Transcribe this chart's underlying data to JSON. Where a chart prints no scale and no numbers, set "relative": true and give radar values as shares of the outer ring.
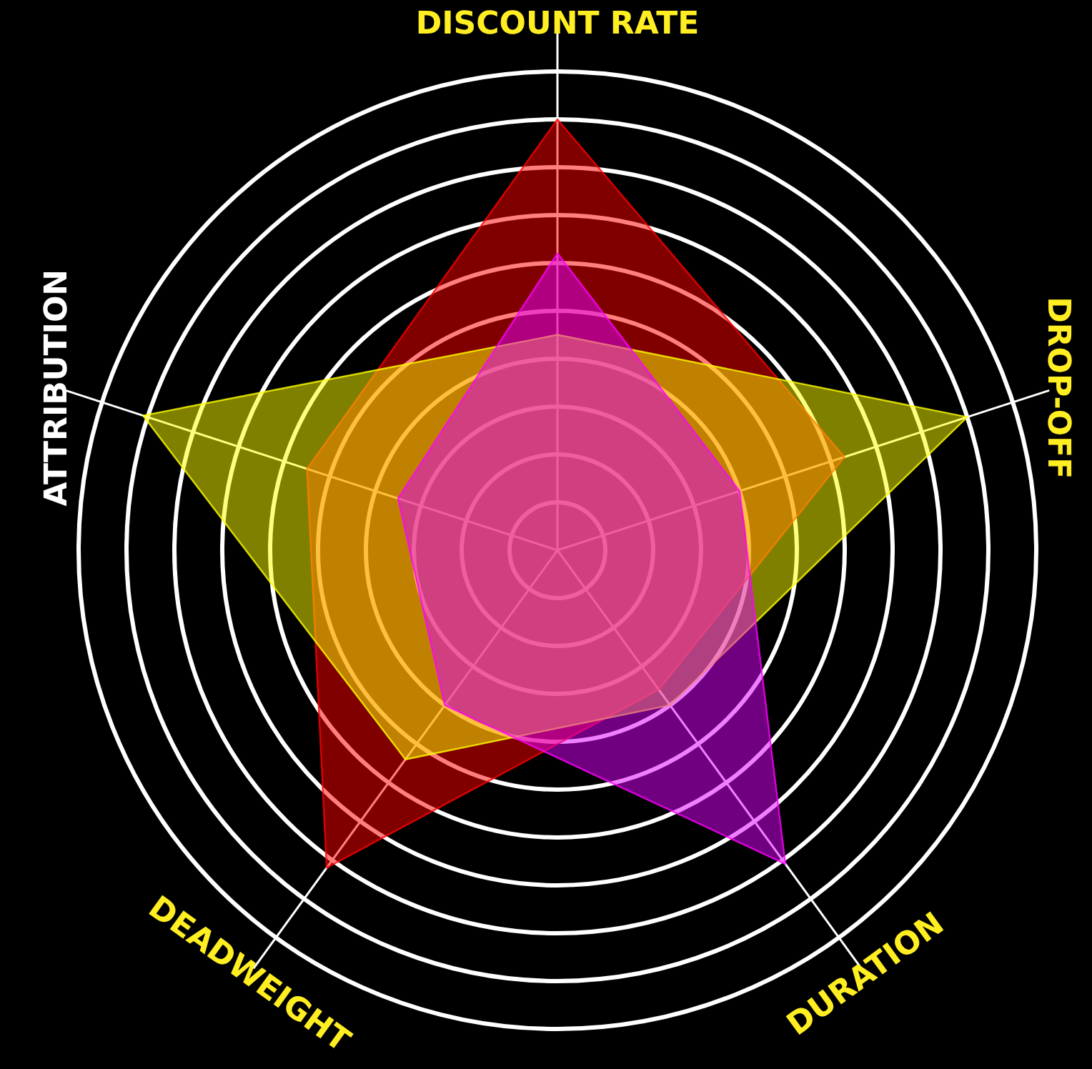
{
  "chart_data": {
    "type": "radar",
    "relative": true,
    "categories": [
      "DISCOUNT RATE",
      "DROP-OFF",
      "DURATION",
      "DEADWEIGHT",
      "ATTRIBUTION"
    ],
    "series": [
      {
        "color": "#ff0000",
        "values": [
          0.9,
          0.63,
          0.36,
          0.82,
          0.55
        ]
      },
      {
        "color": "#ffff00",
        "values": [
          0.45,
          0.9,
          0.4,
          0.54,
          0.91
        ]
      },
      {
        "color": "#e000ff",
        "values": [
          0.62,
          0.4,
          0.81,
          0.4,
          0.35
        ]
      }
    ]
  }
}
